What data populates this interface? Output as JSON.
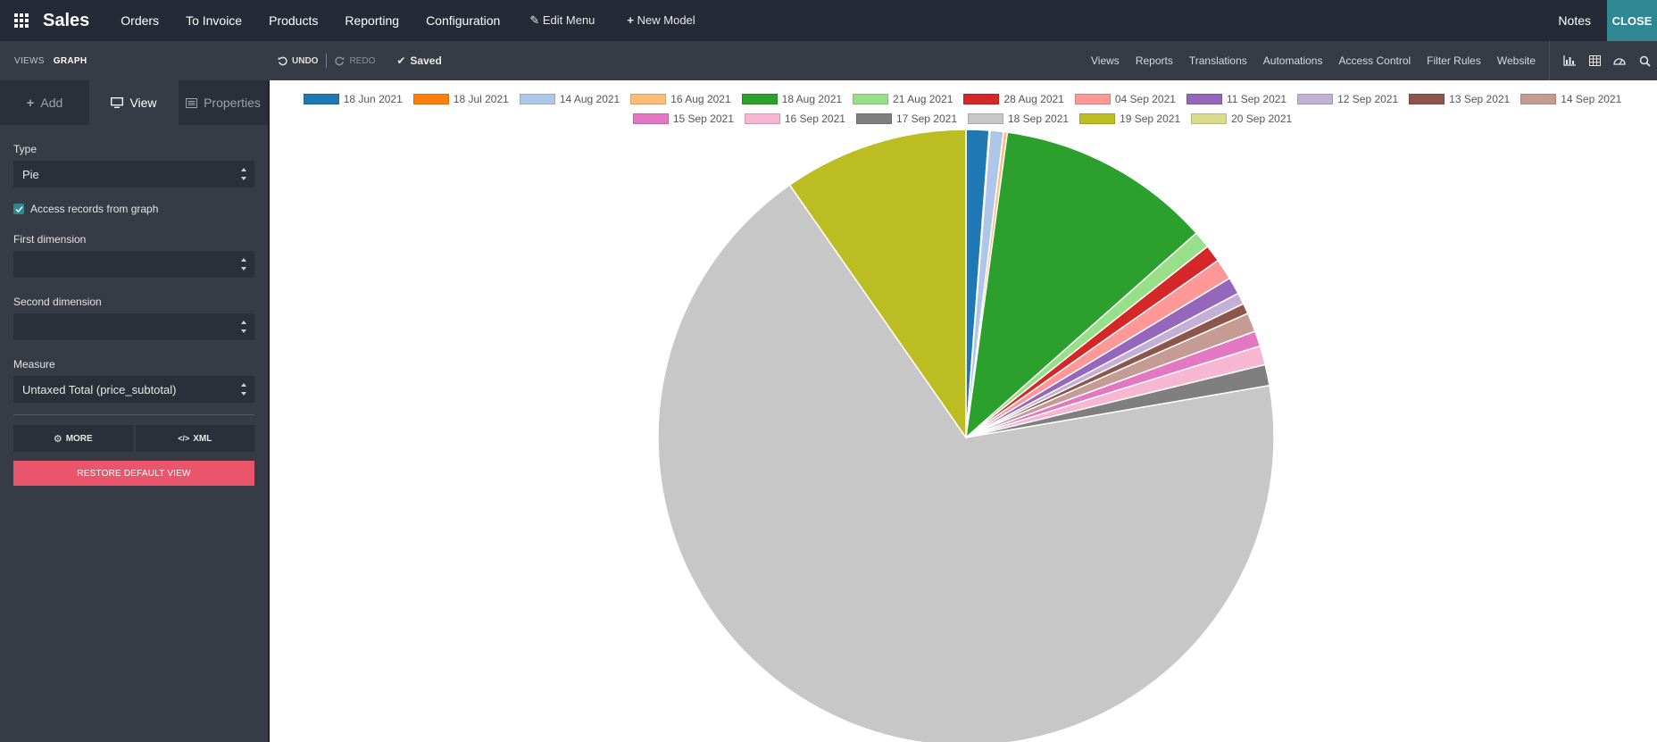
{
  "topbar": {
    "app_name": "Sales",
    "menu": [
      "Orders",
      "To Invoice",
      "Products",
      "Reporting",
      "Configuration"
    ],
    "edit_menu": "Edit Menu",
    "new_model": "New Model",
    "notes": "Notes",
    "close": "CLOSE"
  },
  "toolbar": {
    "views": "VIEWS",
    "graph": "GRAPH",
    "undo": "UNDO",
    "redo": "REDO",
    "saved": "Saved",
    "nav": [
      "Views",
      "Reports",
      "Translations",
      "Automations",
      "Access Control",
      "Filter Rules",
      "Website"
    ]
  },
  "sidebar": {
    "tabs": {
      "add": "Add",
      "view": "View",
      "properties": "Properties"
    },
    "type_label": "Type",
    "type_value": "Pie",
    "access_records": "Access records from graph",
    "first_dimension_label": "First dimension",
    "first_dimension_value": "",
    "second_dimension_label": "Second dimension",
    "second_dimension_value": "",
    "measure_label": "Measure",
    "measure_value": "Untaxed Total (price_subtotal)",
    "more": "MORE",
    "xml": "XML",
    "restore": "RESTORE DEFAULT VIEW"
  },
  "chart_data": {
    "type": "pie",
    "legend_position": "top",
    "categories": [
      "18 Jun 2021",
      "18 Jul 2021",
      "14 Aug 2021",
      "16 Aug 2021",
      "18 Aug 2021",
      "21 Aug 2021",
      "28 Aug 2021",
      "04 Sep 2021",
      "11 Sep 2021",
      "12 Sep 2021",
      "13 Sep 2021",
      "14 Sep 2021",
      "15 Sep 2021",
      "16 Sep 2021",
      "17 Sep 2021",
      "18 Sep 2021",
      "19 Sep 2021",
      "20 Sep 2021"
    ],
    "values": [
      1.2,
      0.05,
      0.7,
      0.2,
      11.3,
      0.9,
      0.9,
      1.1,
      0.9,
      0.6,
      0.55,
      1.0,
      0.8,
      1.0,
      1.1,
      68.0,
      9.7,
      0.0
    ],
    "colors": [
      "#1f77b4",
      "#ff7f0e",
      "#aec7e8",
      "#ffbb78",
      "#2ca02c",
      "#98df8a",
      "#d62728",
      "#ff9896",
      "#9467bd",
      "#c5b0d5",
      "#8c564b",
      "#c49c94",
      "#e377c2",
      "#f7b6d2",
      "#7f7f7f",
      "#c7c7c7",
      "#bcbd22",
      "#dbdb8d"
    ]
  }
}
